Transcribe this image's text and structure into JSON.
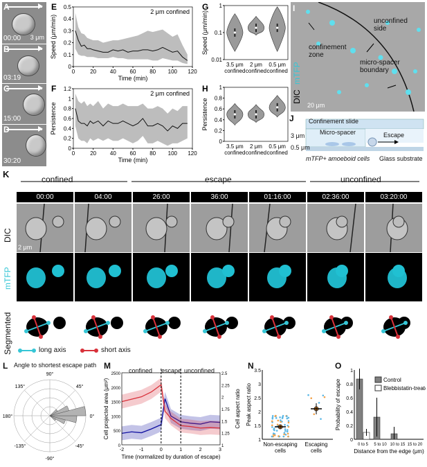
{
  "panels": {
    "A": {
      "label": "A",
      "time": "00:00",
      "scale": "3 μm"
    },
    "B": {
      "label": "B",
      "time": "03:19"
    },
    "C": {
      "label": "C",
      "time": "15:00"
    },
    "D": {
      "label": "D",
      "time": "30:20"
    },
    "E": {
      "label": "E"
    },
    "F": {
      "label": "F"
    },
    "G": {
      "label": "G"
    },
    "H": {
      "label": "H"
    },
    "I": {
      "label": "I",
      "dic": "DIC",
      "mtfp": "mTFP",
      "unconfined": "unconfined side",
      "zone": "confinement zone",
      "boundary": "micro-spacer boundary",
      "scale": "20 μm"
    },
    "J": {
      "label": "J",
      "slide": "Confinement slide",
      "spacer": "Micro-spacer",
      "escape": "Escape",
      "h3": "3 μm",
      "h05": "0.5 μm",
      "cells": "mTFP+ amoeboid cells",
      "glass": "Glass substrate"
    },
    "K": {
      "label": "K",
      "confined": "confined",
      "escape": "escape",
      "unconfined": "unconfined",
      "dic": "DIC",
      "mtfp": "mTFP",
      "segmented": "Segmented",
      "scale": "2 μm",
      "long_axis": "long axis",
      "short_axis": "short axis",
      "times": [
        "00:00",
        "04:00",
        "26:00",
        "36:00",
        "01:16:00",
        "02:36:00",
        "03:20:00"
      ]
    },
    "L": {
      "label": "L",
      "title": "Angle to shortest escape path"
    },
    "M": {
      "label": "M",
      "confined": "confined",
      "escape": "escape",
      "unconfined": "unconfined"
    },
    "N": {
      "label": "N"
    },
    "O": {
      "label": "O",
      "legend_control": "Control",
      "legend_bleb": "Blebbistatin-treated"
    }
  },
  "colors": {
    "cyan": "#36c6d6",
    "red": "#d8313a",
    "blue": "#1010a0",
    "gray_band": "#bdbdbd"
  },
  "chart_data": [
    {
      "panel": "E",
      "type": "line",
      "annotation": "2 μm confined",
      "xlabel": "Time (min)",
      "ylabel": "Speed (μm/min)",
      "xlim": [
        0,
        120
      ],
      "ylim": [
        0,
        0.5
      ],
      "xticks": [
        0,
        20,
        40,
        60,
        80,
        100,
        120
      ],
      "yticks": [
        0,
        0.1,
        0.2,
        0.3,
        0.4,
        0.5
      ],
      "x": [
        2,
        5,
        8,
        11,
        14,
        17,
        20,
        25,
        30,
        35,
        40,
        45,
        50,
        55,
        60,
        65,
        70,
        75,
        80,
        85,
        90,
        95,
        100,
        105,
        110,
        115
      ],
      "mean": [
        0.3,
        0.22,
        0.17,
        0.18,
        0.15,
        0.15,
        0.14,
        0.13,
        0.12,
        0.12,
        0.14,
        0.13,
        0.14,
        0.12,
        0.13,
        0.13,
        0.14,
        0.14,
        0.13,
        0.14,
        0.16,
        0.14,
        0.12,
        0.13,
        0.08,
        0.05
      ],
      "upper": [
        0.45,
        0.33,
        0.28,
        0.27,
        0.24,
        0.23,
        0.22,
        0.22,
        0.2,
        0.21,
        0.22,
        0.22,
        0.23,
        0.24,
        0.25,
        0.26,
        0.28,
        0.3,
        0.29,
        0.3,
        0.31,
        0.28,
        0.25,
        0.27,
        0.18,
        0.1
      ],
      "lower": [
        0.15,
        0.1,
        0.09,
        0.09,
        0.08,
        0.08,
        0.08,
        0.07,
        0.07,
        0.07,
        0.08,
        0.07,
        0.07,
        0.06,
        0.06,
        0.06,
        0.06,
        0.06,
        0.05,
        0.05,
        0.07,
        0.06,
        0.05,
        0.05,
        0.03,
        0.02
      ]
    },
    {
      "panel": "F",
      "type": "line",
      "annotation": "2 μm confined",
      "xlabel": "Time (min)",
      "ylabel": "Persistence",
      "xlim": [
        0,
        120
      ],
      "ylim": [
        0,
        1.2
      ],
      "xticks": [
        0,
        20,
        40,
        60,
        80,
        100,
        120
      ],
      "yticks": [
        0,
        0.2,
        0.4,
        0.6,
        0.8,
        1.0,
        1.2
      ],
      "x": [
        2,
        5,
        8,
        11,
        14,
        17,
        20,
        25,
        30,
        35,
        40,
        45,
        50,
        55,
        60,
        65,
        70,
        75,
        80,
        85,
        90,
        95,
        100,
        105,
        110,
        115
      ],
      "mean": [
        0.8,
        0.55,
        0.5,
        0.5,
        0.45,
        0.55,
        0.5,
        0.55,
        0.45,
        0.55,
        0.5,
        0.5,
        0.55,
        0.5,
        0.45,
        0.5,
        0.6,
        0.45,
        0.45,
        0.5,
        0.45,
        0.35,
        0.45,
        0.4,
        0.5,
        0.5
      ],
      "upper": [
        1.1,
        0.95,
        0.9,
        0.95,
        0.85,
        0.9,
        0.85,
        0.95,
        0.8,
        0.9,
        0.85,
        0.85,
        0.9,
        0.85,
        0.85,
        0.85,
        0.9,
        0.8,
        0.8,
        0.85,
        0.8,
        0.7,
        0.8,
        0.75,
        0.85,
        0.85
      ],
      "lower": [
        0.45,
        0.2,
        0.15,
        0.15,
        0.1,
        0.2,
        0.15,
        0.2,
        0.15,
        0.2,
        0.15,
        0.15,
        0.2,
        0.15,
        0.1,
        0.15,
        0.25,
        0.1,
        0.1,
        0.15,
        0.1,
        0.05,
        0.1,
        0.1,
        0.15,
        0.2
      ]
    },
    {
      "panel": "G",
      "type": "violin",
      "ylabel": "Speed (μm/min)",
      "yscale": "log",
      "ylim": [
        0.01,
        1
      ],
      "ytick_labels": [
        "0.01",
        "0.1",
        "1"
      ],
      "categories": [
        "3.5 μm confined",
        "2 μm confined",
        "0.5 μm confined"
      ],
      "medians": [
        0.1,
        0.15,
        0.15
      ],
      "ranges": [
        [
          0.02,
          0.5
        ],
        [
          0.08,
          0.4
        ],
        [
          0.02,
          0.9
        ]
      ]
    },
    {
      "panel": "H",
      "type": "violin",
      "ylabel": "Persistence",
      "ylim": [
        0,
        1
      ],
      "yticks": [
        0,
        0.2,
        0.4,
        0.6,
        0.8,
        1
      ],
      "categories": [
        "3.5 μm confined",
        "2 μm confined",
        "0.5 μm confined"
      ],
      "medians": [
        0.5,
        0.5,
        0.63
      ],
      "ranges": [
        [
          0.3,
          0.7
        ],
        [
          0.35,
          0.68
        ],
        [
          0.45,
          0.85
        ]
      ]
    },
    {
      "panel": "L",
      "type": "polar_histogram",
      "title": "Angle to shortest escape path",
      "angle_labels": [
        "90°",
        "45°",
        "0°",
        "-45°",
        "-90°",
        "-135°",
        "180°",
        "135°"
      ],
      "bins_deg": [
        -45,
        -30,
        -15,
        0,
        15,
        30
      ],
      "counts": [
        0.2,
        0.45,
        0.75,
        1.0,
        0.55,
        0.25
      ]
    },
    {
      "panel": "M",
      "type": "line",
      "xlabel": "Time (normalized by duration of escape)",
      "ylabel": "Cell projected area (μm²)",
      "ylabel_right": "Cell aspect ratio",
      "xlim": [
        -2,
        3
      ],
      "ylim": [
        0,
        2500
      ],
      "ylim_right": [
        1.0,
        2.5
      ],
      "xticks": [
        -2,
        -1,
        0,
        1,
        2,
        3
      ],
      "yticks": [
        0,
        500,
        1000,
        1500,
        2000,
        2500
      ],
      "yticks_right": [
        1.0,
        1.25,
        1.5,
        1.75,
        2.0,
        2.25,
        2.5
      ],
      "series": [
        {
          "color": "blue",
          "x": [
            -2,
            -1.5,
            -1,
            -0.5,
            0,
            0.2,
            0.5,
            1,
            1.5,
            2,
            2.5,
            3
          ],
          "values": [
            400,
            450,
            420,
            550,
            700,
            1600,
            1000,
            800,
            750,
            720,
            800,
            780
          ]
        },
        {
          "color": "red",
          "x": [
            -2,
            -1.5,
            -1,
            -0.5,
            0,
            0.2,
            0.5,
            1,
            1.5,
            2,
            2.5,
            3
          ],
          "values": [
            1.9,
            1.95,
            2.0,
            2.1,
            2.25,
            1.7,
            1.55,
            1.4,
            1.38,
            1.35,
            1.36,
            1.35
          ]
        }
      ]
    },
    {
      "panel": "N",
      "type": "scatter",
      "ylabel": "Peak aspect ratio",
      "ylim": [
        1,
        3.5
      ],
      "yticks": [
        1,
        1.5,
        2,
        2.5,
        3,
        3.5
      ],
      "categories": [
        "Non-escaping cells",
        "Escaping cells"
      ],
      "means": [
        1.45,
        2.1
      ],
      "errors": [
        0.07,
        0.2
      ]
    },
    {
      "panel": "O",
      "type": "bar",
      "ylabel": "Probability of escape",
      "xlabel": "Distance from the edge (μm)",
      "categories": [
        "0 to 5",
        "5 to 10",
        "10 to 15",
        "15 to 20"
      ],
      "ylim": [
        0,
        1
      ],
      "yticks": [
        0,
        0.2,
        0.4,
        0.6,
        0.8,
        1
      ],
      "series": [
        {
          "name": "Control",
          "values": [
            0.87,
            0.32,
            0.08,
            0.0
          ],
          "errors": [
            0.15,
            0.28,
            0.1,
            0.0
          ]
        },
        {
          "name": "Blebbistatin-treated",
          "values": [
            0.1,
            0.0,
            0.0,
            0.0
          ],
          "errors": [
            0.05,
            0.0,
            0.0,
            0.0
          ]
        }
      ]
    }
  ]
}
